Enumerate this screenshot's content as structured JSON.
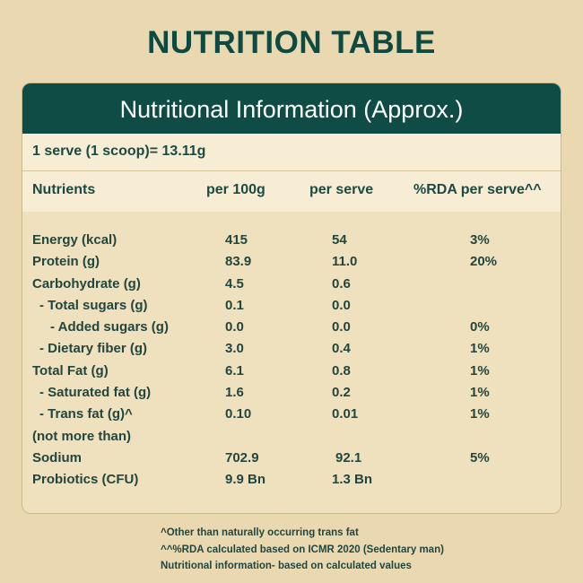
{
  "page_title": "NUTRITION TABLE",
  "card": {
    "header": "Nutritional Information (Approx.)",
    "serve": "1 serve (1 scoop)= 13.11g",
    "columns": [
      "Nutrients",
      "per 100g",
      "per serve",
      "%RDA per serve^^"
    ],
    "rows": [
      {
        "name": "Energy (kcal)",
        "per100": "415",
        "serve": "54",
        "rda": "3%"
      },
      {
        "name": "Protein (g)",
        "per100": "83.9",
        "serve": "11.0",
        "rda": "20%"
      },
      {
        "name": "Carbohydrate (g)",
        "per100": "4.5",
        "serve": "0.6",
        "rda": ""
      },
      {
        "name": "- Total sugars (g)",
        "per100": "0.1",
        "serve": "0.0",
        "rda": ""
      },
      {
        "name": "- Added sugars (g)",
        "per100": "0.0",
        "serve": "0.0",
        "rda": "0%"
      },
      {
        "name": "- Dietary fiber (g)",
        "per100": "3.0",
        "serve": "0.4",
        "rda": "1%"
      },
      {
        "name": "Total Fat (g)",
        "per100": "6.1",
        "serve": "0.8",
        "rda": "1%"
      },
      {
        "name": "- Saturated fat (g)",
        "per100": "1.6",
        "serve": "0.2",
        "rda": "1%"
      },
      {
        "name": "- Trans fat (g)^",
        "per100": "0.10",
        "serve": "0.01",
        "rda": "1%"
      },
      {
        "name": "(not more than)",
        "per100": "",
        "serve": "",
        "rda": ""
      },
      {
        "name": "Sodium",
        "per100": "702.9",
        "serve": "92.1",
        "rda": "5%"
      },
      {
        "name": "Probiotics (CFU)",
        "per100": "9.9 Bn",
        "serve": "1.3 Bn",
        "rda": ""
      }
    ]
  },
  "footnotes": [
    "^Other than naturally occurring trans fat",
    "^^%RDA calculated based on ICMR 2020 (Sedentary man)",
    "Nutritional information- based on calculated values"
  ]
}
